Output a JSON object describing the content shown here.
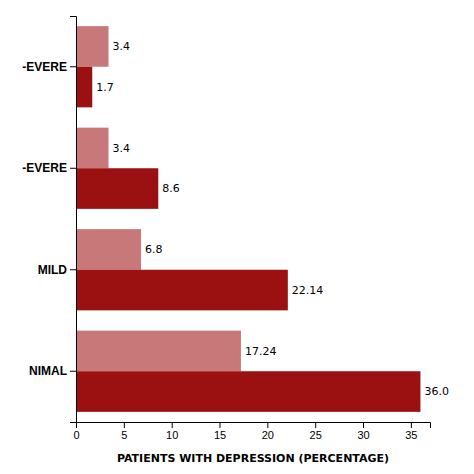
{
  "chart_data": {
    "type": "bar",
    "orientation": "horizontal",
    "categories": [
      "-EVERE",
      "-EVERE",
      "MILD",
      "NIMAL"
    ],
    "series": [
      {
        "color": "#c87878",
        "values": [
          3.4,
          3.4,
          6.8,
          17.24
        ]
      },
      {
        "color": "#9b1010",
        "values": [
          1.7,
          8.6,
          22.14,
          36.0
        ],
        "value_labels": [
          "1.7",
          "8.6",
          "22.14",
          "36.0"
        ]
      }
    ],
    "xlabel": "PATIENTS WITH DEPRESSION (PERCENTAGE)",
    "xlim": [
      0,
      37
    ],
    "xticks": [
      0,
      5,
      10,
      15,
      20,
      25,
      30,
      35
    ],
    "data_labels": true,
    "grid": false
  }
}
